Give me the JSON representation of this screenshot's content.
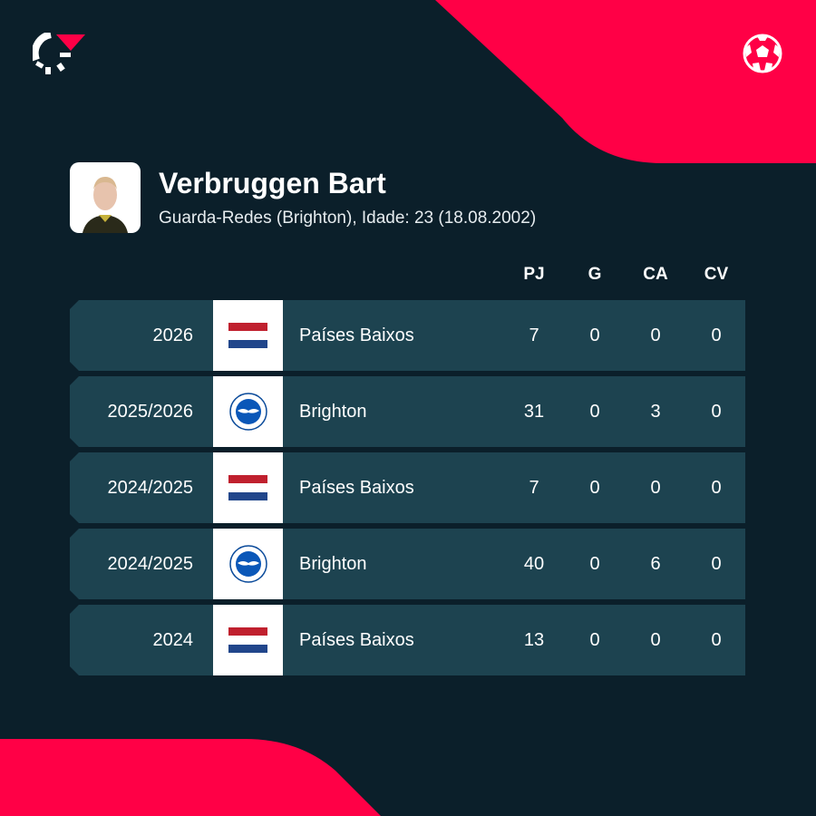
{
  "colors": {
    "accent": "#ff0046",
    "background": "#0b1f2a",
    "row": "#1d4350"
  },
  "icons": {
    "logo": "flashscore-logo-icon",
    "sport": "football-icon"
  },
  "player": {
    "name": "Verbruggen Bart",
    "subtitle": "Guarda-Redes (Brighton), Idade: 23 (18.08.2002)"
  },
  "columns": [
    "PJ",
    "G",
    "CA",
    "CV"
  ],
  "rows": [
    {
      "season": "2026",
      "team": "Países Baixos",
      "badge": "netherlands-flag",
      "pj": "7",
      "g": "0",
      "ca": "0",
      "cv": "0"
    },
    {
      "season": "2025/2026",
      "team": "Brighton",
      "badge": "brighton-crest",
      "pj": "31",
      "g": "0",
      "ca": "3",
      "cv": "0"
    },
    {
      "season": "2024/2025",
      "team": "Países Baixos",
      "badge": "netherlands-flag",
      "pj": "7",
      "g": "0",
      "ca": "0",
      "cv": "0"
    },
    {
      "season": "2024/2025",
      "team": "Brighton",
      "badge": "brighton-crest",
      "pj": "40",
      "g": "0",
      "ca": "6",
      "cv": "0"
    },
    {
      "season": "2024",
      "team": "Países Baixos",
      "badge": "netherlands-flag",
      "pj": "13",
      "g": "0",
      "ca": "0",
      "cv": "0"
    }
  ]
}
